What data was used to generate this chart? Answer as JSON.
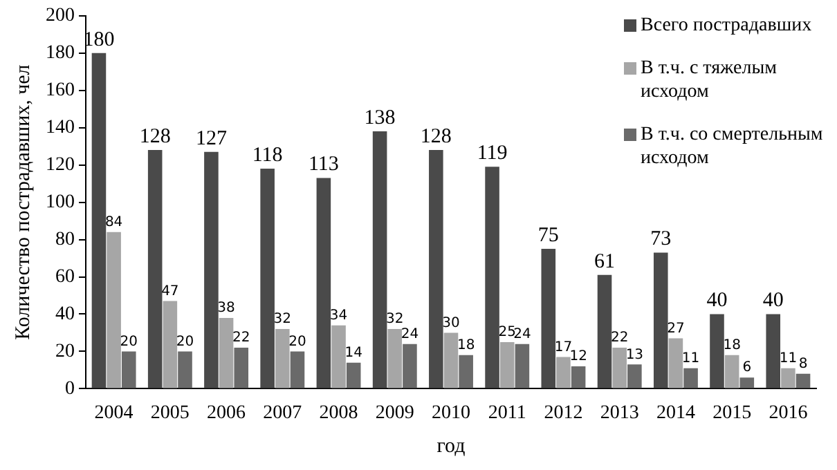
{
  "chart_data": {
    "type": "bar",
    "xlabel": "год",
    "ylabel": "Количество пострадавших, чел",
    "categories": [
      "2004",
      "2005",
      "2006",
      "2007",
      "2008",
      "2009",
      "2010",
      "2011",
      "2012",
      "2013",
      "2014",
      "2015",
      "2016"
    ],
    "series": [
      {
        "name": "Всего пострадавших",
        "color": "#4a4a4a",
        "values": [
          180,
          128,
          127,
          118,
          113,
          138,
          128,
          119,
          75,
          61,
          73,
          40,
          40
        ]
      },
      {
        "name": "В т.ч. с тяжелым исходом",
        "color": "#a6a6a6",
        "values": [
          84,
          47,
          38,
          32,
          34,
          32,
          30,
          25,
          17,
          22,
          27,
          18,
          11
        ]
      },
      {
        "name": "В т.ч. со смертельным исходом",
        "color": "#6a6a6a",
        "values": [
          20,
          20,
          22,
          20,
          14,
          24,
          18,
          24,
          12,
          13,
          11,
          6,
          8
        ]
      }
    ],
    "ylim": [
      0,
      200
    ],
    "yticks": [
      0,
      20,
      40,
      60,
      80,
      100,
      120,
      140,
      160,
      180,
      200
    ],
    "grid": false,
    "legend": "top right",
    "data_labels": true
  }
}
